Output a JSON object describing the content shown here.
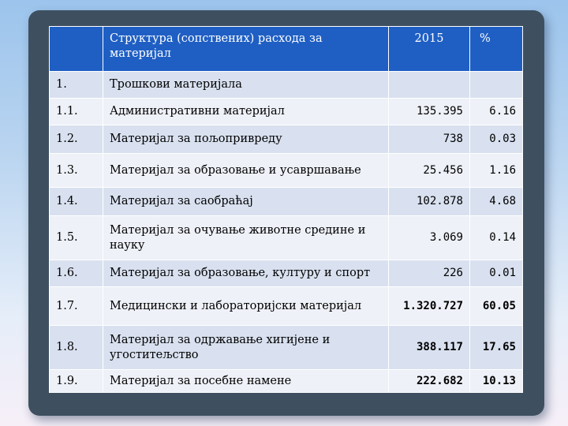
{
  "table": {
    "header": {
      "num": "",
      "desc": "Структура (сопствених) расхода за материјал",
      "year": "2015",
      "pct": "%"
    },
    "rows": [
      {
        "num": "1.",
        "desc": "Трошкови материјала",
        "value": "",
        "pct": ""
      },
      {
        "num": "1.1.",
        "desc": "Административни материјал",
        "value": "135.395",
        "pct": "6.16"
      },
      {
        "num": "1.2.",
        "desc": "Материјал за пољопривреду",
        "value": "738",
        "pct": "0.03"
      },
      {
        "num": "1.3.",
        "desc": "Материјал за образовање и усавршавање",
        "value": "25.456",
        "pct": "1.16"
      },
      {
        "num": "1.4.",
        "desc": "Материјал за саобраћај",
        "value": "102.878",
        "pct": "4.68"
      },
      {
        "num": "1.5.",
        "desc": "Материјал за очување животне средине и науку",
        "value": "3.069",
        "pct": "0.14"
      },
      {
        "num": "1.6.",
        "desc": "Материјал за образовање, културу и спорт",
        "value": "226",
        "pct": "0.01"
      },
      {
        "num": "1.7.",
        "desc": "Медицински и лабораторијски материјал",
        "value": "1.320.727",
        "pct": "60.05"
      },
      {
        "num": "1.8.",
        "desc": "Материјал за одржавање хигијене и угоститељство",
        "value": "388.117",
        "pct": "17.65"
      },
      {
        "num": "1.9.",
        "desc": "Материјал за посебне намене",
        "value": "222.682",
        "pct": "10.13"
      }
    ]
  }
}
